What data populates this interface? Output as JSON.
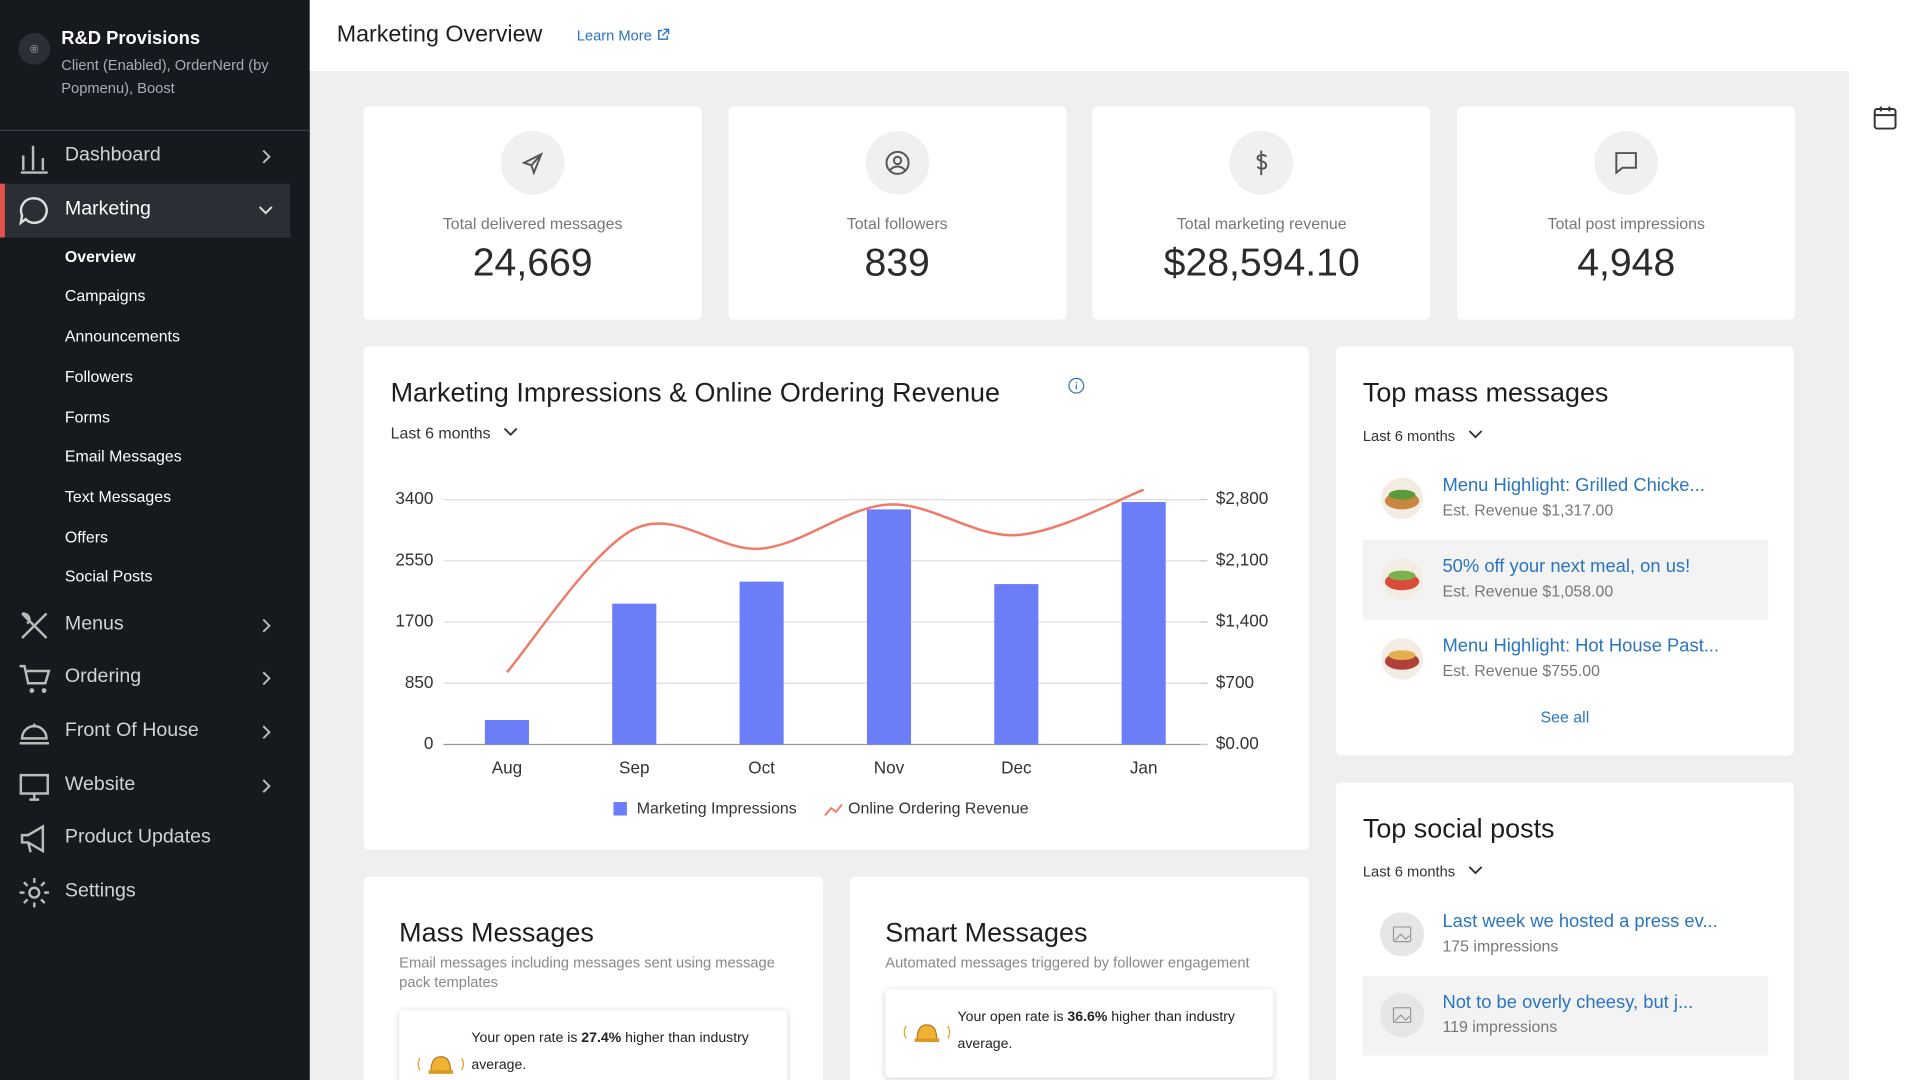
{
  "sidebar": {
    "org_name": "R&D Provisions",
    "org_details": "Client (Enabled), OrderNerd (by Popmenu), Boost",
    "nav": [
      {
        "label": "Dashboard"
      },
      {
        "label": "Marketing",
        "items": [
          "Overview",
          "Campaigns",
          "Announcements",
          "Followers",
          "Forms",
          "Email Messages",
          "Text Messages",
          "Offers",
          "Social Posts"
        ]
      },
      {
        "label": "Menus"
      },
      {
        "label": "Ordering"
      },
      {
        "label": "Front Of House"
      },
      {
        "label": "Website"
      },
      {
        "label": "Product Updates"
      },
      {
        "label": "Settings"
      }
    ]
  },
  "header": {
    "title": "Marketing Overview",
    "link": "Learn More"
  },
  "stats": [
    {
      "label": "Total delivered messages",
      "value": "24,669"
    },
    {
      "label": "Total followers",
      "value": "839"
    },
    {
      "label": "Total marketing revenue",
      "value": "$28,594.10"
    },
    {
      "label": "Total post impressions",
      "value": "4,948"
    }
  ],
  "chart_data": {
    "type": "bar",
    "title": "Marketing Impressions & Online Ordering Revenue",
    "period": "Last 6 months",
    "categories": [
      "Aug",
      "Sep",
      "Oct",
      "Nov",
      "Dec",
      "Jan"
    ],
    "series": [
      {
        "name": "Marketing Impressions",
        "type": "bar",
        "color": "#6c7ef7",
        "values": [
          340,
          1955,
          2261,
          3264,
          2227,
          3366
        ]
      },
      {
        "name": "Online Ordering Revenue",
        "type": "line",
        "axis": "y2",
        "color": "#ef7a68",
        "values": [
          826,
          2464,
          2240,
          2744,
          2394,
          2912
        ]
      }
    ],
    "ylim": [
      0,
      3400
    ],
    "yticks": [
      0,
      850,
      1700,
      2550,
      3400
    ],
    "y2lim": [
      0,
      2800
    ],
    "y2ticks": [
      {
        "value": 0,
        "label": "$0.00"
      },
      {
        "value": 700,
        "label": "$700"
      },
      {
        "value": 1400,
        "label": "$1,400"
      },
      {
        "value": 2100,
        "label": "$2,100"
      },
      {
        "value": 2800,
        "label": "$2,800"
      }
    ],
    "grid": true
  },
  "top_mass_messages": {
    "title": "Top mass messages",
    "period": "Last 6 months",
    "items": [
      {
        "title": "Menu Highlight: Grilled Chicke...",
        "detail": "Est. Revenue $1,317.00"
      },
      {
        "title": "50% off your next meal, on us!",
        "detail": "Est. Revenue $1,058.00"
      },
      {
        "title": "Menu Highlight: Hot House Past...",
        "detail": "Est. Revenue $755.00"
      }
    ],
    "see_all": "See all"
  },
  "top_social_posts": {
    "title": "Top social posts",
    "period": "Last 6 months",
    "items": [
      {
        "title": "Last week we hosted a press ev...",
        "detail": "175 impressions"
      },
      {
        "title": "Not to be overly cheesy, but j...",
        "detail": "119 impressions"
      }
    ]
  },
  "mass_messages": {
    "title": "Mass Messages",
    "description": "Email messages including messages sent using message pack templates",
    "note": {
      "prefix": "Your open rate is",
      "rate": "27.4%",
      "suffix": "higher than industry average."
    }
  },
  "smart_messages": {
    "title": "Smart Messages",
    "description": "Automated messages triggered by follower engagement",
    "note": {
      "prefix": "Your open rate is",
      "rate": "36.6%",
      "suffix": "higher than industry average."
    }
  }
}
